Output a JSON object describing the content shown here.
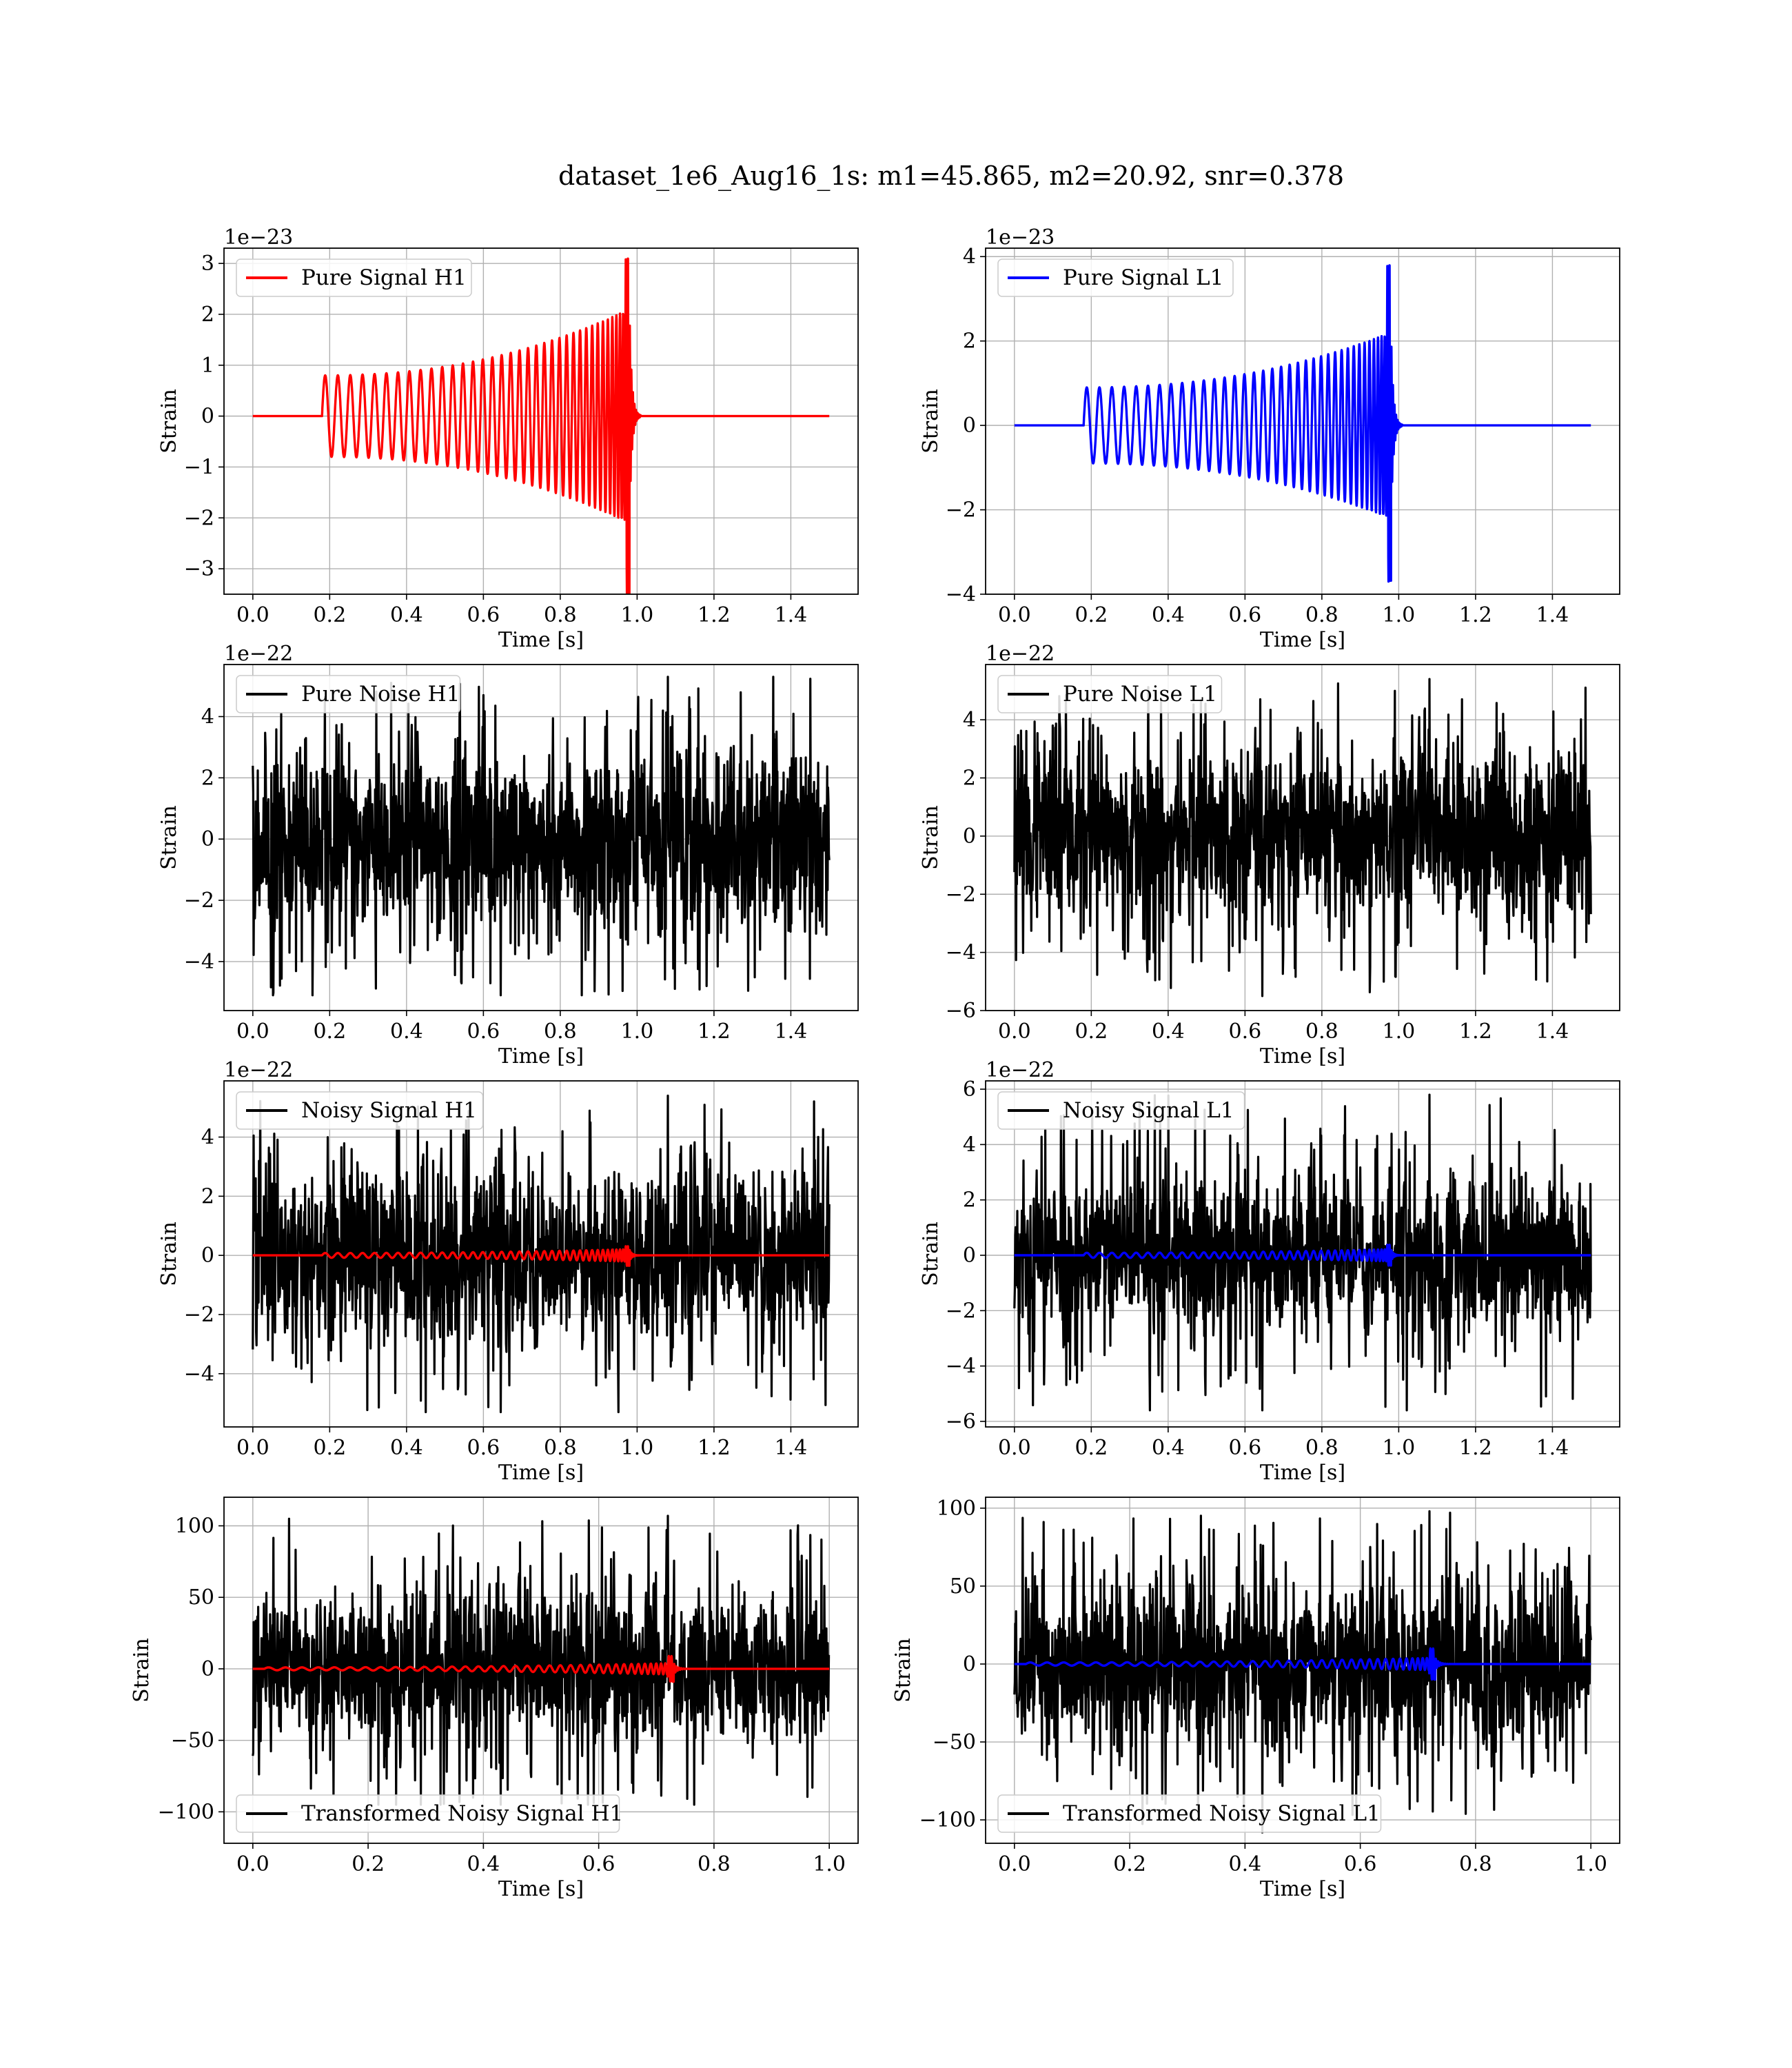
{
  "title": "dataset_1e6_Aug16_1s: m1=45.865, m2=20.92, snr=0.378",
  "colors": {
    "h1_signal": "#ff0000",
    "l1_signal": "#0000ff",
    "noise": "#000000",
    "grid": "#b0b0b0"
  },
  "chart_data": [
    {
      "id": "pure-signal-h1",
      "type": "line",
      "legend": "Pure Signal H1",
      "legend_position": "upper-left",
      "xlabel": "Time [s]",
      "ylabel": "Strain",
      "offset_label": "1e−23",
      "xlim": [
        -0.075,
        1.575
      ],
      "ylim": [
        -3.5,
        3.3
      ],
      "xticks": [
        0.0,
        0.2,
        0.4,
        0.6,
        0.8,
        1.0,
        1.2,
        1.4
      ],
      "xtick_labels": [
        "0.0",
        "0.2",
        "0.4",
        "0.6",
        "0.8",
        "1.0",
        "1.2",
        "1.4"
      ],
      "yticks": [
        -3,
        -2,
        -1,
        0,
        1,
        2,
        3
      ],
      "ytick_labels": [
        "−3",
        "−2",
        "−1",
        "0",
        "1",
        "2",
        "3"
      ],
      "grid": true,
      "series": [
        {
          "kind": "chirp",
          "color": "#ff0000",
          "t_start": 0.0,
          "t_end": 1.5,
          "t_onset": 0.18,
          "t_merge": 0.98,
          "amp_start": 0.8,
          "amp_end": 2.1,
          "peak_pos": 3.1,
          "peak_neg": -3.5
        }
      ]
    },
    {
      "id": "pure-signal-l1",
      "type": "line",
      "legend": "Pure Signal L1",
      "legend_position": "upper-left",
      "xlabel": "Time [s]",
      "ylabel": "Strain",
      "offset_label": "1e−23",
      "xlim": [
        -0.075,
        1.575
      ],
      "ylim": [
        -4.0,
        4.2
      ],
      "xticks": [
        0.0,
        0.2,
        0.4,
        0.6,
        0.8,
        1.0,
        1.2,
        1.4
      ],
      "xtick_labels": [
        "0.0",
        "0.2",
        "0.4",
        "0.6",
        "0.8",
        "1.0",
        "1.2",
        "1.4"
      ],
      "yticks": [
        -4,
        -2,
        0,
        2,
        4
      ],
      "ytick_labels": [
        "−4",
        "−2",
        "0",
        "2",
        "4"
      ],
      "grid": true,
      "series": [
        {
          "kind": "chirp",
          "color": "#0000ff",
          "t_start": 0.0,
          "t_end": 1.5,
          "t_onset": 0.18,
          "t_merge": 0.98,
          "amp_start": 0.9,
          "amp_end": 2.2,
          "peak_pos": 3.8,
          "peak_neg": -3.7
        }
      ]
    },
    {
      "id": "pure-noise-h1",
      "type": "line",
      "legend": "Pure Noise H1",
      "legend_position": "upper-left",
      "xlabel": "Time [s]",
      "ylabel": "Strain",
      "offset_label": "1e−22",
      "xlim": [
        -0.075,
        1.575
      ],
      "ylim": [
        -5.6,
        5.7
      ],
      "xticks": [
        0.0,
        0.2,
        0.4,
        0.6,
        0.8,
        1.0,
        1.2,
        1.4
      ],
      "xtick_labels": [
        "0.0",
        "0.2",
        "0.4",
        "0.6",
        "0.8",
        "1.0",
        "1.2",
        "1.4"
      ],
      "yticks": [
        -4,
        -2,
        0,
        2,
        4
      ],
      "ytick_labels": [
        "−4",
        "−2",
        "0",
        "2",
        "4"
      ],
      "grid": true,
      "series": [
        {
          "kind": "noise",
          "color": "#000000",
          "t_start": 0.0,
          "t_end": 1.5,
          "max": 5.3,
          "min": -5.1,
          "typical": 2.0,
          "seed": 11
        }
      ]
    },
    {
      "id": "pure-noise-l1",
      "type": "line",
      "legend": "Pure Noise L1",
      "legend_position": "upper-left",
      "xlabel": "Time [s]",
      "ylabel": "Strain",
      "offset_label": "1e−22",
      "xlim": [
        -0.075,
        1.575
      ],
      "ylim": [
        -6.0,
        5.9
      ],
      "xticks": [
        0.0,
        0.2,
        0.4,
        0.6,
        0.8,
        1.0,
        1.2,
        1.4
      ],
      "xtick_labels": [
        "0.0",
        "0.2",
        "0.4",
        "0.6",
        "0.8",
        "1.0",
        "1.2",
        "1.4"
      ],
      "yticks": [
        -6,
        -4,
        -2,
        0,
        2,
        4
      ],
      "ytick_labels": [
        "−6",
        "−4",
        "−2",
        "0",
        "2",
        "4"
      ],
      "grid": true,
      "series": [
        {
          "kind": "noise",
          "color": "#000000",
          "t_start": 0.0,
          "t_end": 1.5,
          "max": 5.4,
          "min": -5.5,
          "typical": 2.1,
          "seed": 23
        }
      ]
    },
    {
      "id": "noisy-signal-h1",
      "type": "line",
      "legend": "Noisy Signal H1",
      "legend_position": "upper-left",
      "xlabel": "Time [s]",
      "ylabel": "Strain",
      "offset_label": "1e−22",
      "xlim": [
        -0.075,
        1.575
      ],
      "ylim": [
        -5.8,
        5.9
      ],
      "xticks": [
        0.0,
        0.2,
        0.4,
        0.6,
        0.8,
        1.0,
        1.2,
        1.4
      ],
      "xtick_labels": [
        "0.0",
        "0.2",
        "0.4",
        "0.6",
        "0.8",
        "1.0",
        "1.2",
        "1.4"
      ],
      "yticks": [
        -4,
        -2,
        0,
        2,
        4
      ],
      "ytick_labels": [
        "−4",
        "−2",
        "0",
        "2",
        "4"
      ],
      "grid": true,
      "series": [
        {
          "kind": "noise",
          "color": "#000000",
          "t_start": 0.0,
          "t_end": 1.5,
          "max": 5.4,
          "min": -5.3,
          "typical": 2.0,
          "seed": 37
        },
        {
          "kind": "chirp",
          "color": "#ff0000",
          "t_start": 0.0,
          "t_end": 1.5,
          "t_onset": 0.18,
          "t_merge": 0.98,
          "amp_start": 0.08,
          "amp_end": 0.21,
          "peak_pos": 0.31,
          "peak_neg": -0.35
        }
      ]
    },
    {
      "id": "noisy-signal-l1",
      "type": "line",
      "legend": "Noisy Signal L1",
      "legend_position": "upper-left",
      "xlabel": "Time [s]",
      "ylabel": "Strain",
      "offset_label": "1e−22",
      "xlim": [
        -0.075,
        1.575
      ],
      "ylim": [
        -6.2,
        6.3
      ],
      "xticks": [
        0.0,
        0.2,
        0.4,
        0.6,
        0.8,
        1.0,
        1.2,
        1.4
      ],
      "xtick_labels": [
        "0.0",
        "0.2",
        "0.4",
        "0.6",
        "0.8",
        "1.0",
        "1.2",
        "1.4"
      ],
      "yticks": [
        -6,
        -4,
        -2,
        0,
        2,
        4,
        6
      ],
      "ytick_labels": [
        "−6",
        "−4",
        "−2",
        "0",
        "2",
        "4",
        "6"
      ],
      "grid": true,
      "series": [
        {
          "kind": "noise",
          "color": "#000000",
          "t_start": 0.0,
          "t_end": 1.5,
          "max": 5.8,
          "min": -5.6,
          "typical": 2.1,
          "seed": 53
        },
        {
          "kind": "chirp",
          "color": "#0000ff",
          "t_start": 0.0,
          "t_end": 1.5,
          "t_onset": 0.18,
          "t_merge": 0.98,
          "amp_start": 0.09,
          "amp_end": 0.22,
          "peak_pos": 0.38,
          "peak_neg": -0.37
        }
      ]
    },
    {
      "id": "transformed-noisy-signal-h1",
      "type": "line",
      "legend": "Transformed Noisy Signal H1",
      "legend_position": "lower-left",
      "xlabel": "Time [s]",
      "ylabel": "Strain",
      "offset_label": "",
      "xlim": [
        -0.05,
        1.05
      ],
      "ylim": [
        -122,
        120
      ],
      "xticks": [
        0.0,
        0.2,
        0.4,
        0.6,
        0.8,
        1.0
      ],
      "xtick_labels": [
        "0.0",
        "0.2",
        "0.4",
        "0.6",
        "0.8",
        "1.0"
      ],
      "yticks": [
        -100,
        -50,
        0,
        50,
        100
      ],
      "ytick_labels": [
        "−100",
        "−50",
        "0",
        "50",
        "100"
      ],
      "grid": true,
      "series": [
        {
          "kind": "noise",
          "color": "#000000",
          "t_start": 0.0,
          "t_end": 1.0,
          "max": 107,
          "min": -95,
          "typical": 38,
          "seed": 71
        },
        {
          "kind": "chirp",
          "color": "#ff0000",
          "t_start": 0.0,
          "t_end": 1.0,
          "t_onset": 0.02,
          "t_merge": 0.73,
          "amp_start": 1.0,
          "amp_end": 4.0,
          "peak_pos": 9,
          "peak_neg": -9
        }
      ]
    },
    {
      "id": "transformed-noisy-signal-l1",
      "type": "line",
      "legend": "Transformed Noisy Signal L1",
      "legend_position": "lower-left",
      "xlabel": "Time [s]",
      "ylabel": "Strain",
      "offset_label": "",
      "xlim": [
        -0.05,
        1.05
      ],
      "ylim": [
        -115,
        107
      ],
      "xticks": [
        0.0,
        0.2,
        0.4,
        0.6,
        0.8,
        1.0
      ],
      "xtick_labels": [
        "0.0",
        "0.2",
        "0.4",
        "0.6",
        "0.8",
        "1.0"
      ],
      "yticks": [
        -100,
        -50,
        0,
        50,
        100
      ],
      "ytick_labels": [
        "−100",
        "−50",
        "0",
        "50",
        "100"
      ],
      "grid": true,
      "series": [
        {
          "kind": "noise",
          "color": "#000000",
          "t_start": 0.0,
          "t_end": 1.0,
          "max": 98,
          "min": -108,
          "typical": 38,
          "seed": 89
        },
        {
          "kind": "chirp",
          "color": "#0000ff",
          "t_start": 0.0,
          "t_end": 1.0,
          "t_onset": 0.02,
          "t_merge": 0.73,
          "amp_start": 1.0,
          "amp_end": 4.0,
          "peak_pos": 10,
          "peak_neg": -10
        }
      ]
    }
  ]
}
